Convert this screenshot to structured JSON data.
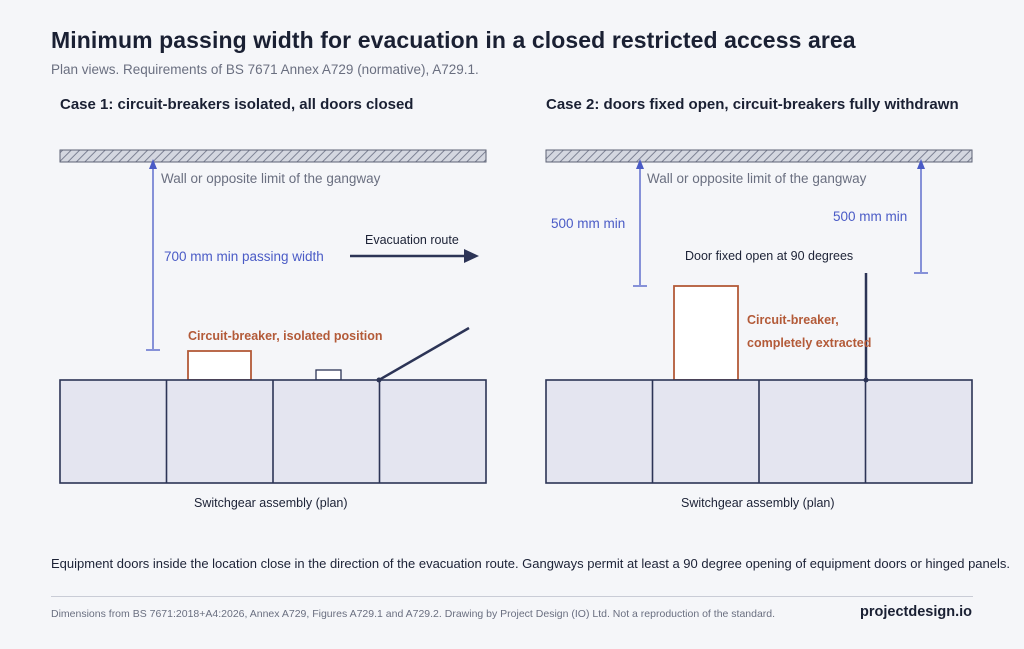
{
  "header": {
    "title": "Minimum passing width for evacuation in a closed restricted access area",
    "subtitle": "Plan views. Requirements of BS 7671 Annex A729 (normative), A729.1."
  },
  "case1": {
    "heading": "Case 1: circuit-breakers isolated, all doors closed",
    "wall_label": "Wall or opposite limit of the gangway",
    "dimension_label": "700 mm min passing width",
    "route_label": "Evacuation route",
    "breaker_label": "Circuit-breaker, isolated position",
    "caption": "Switchgear assembly (plan)"
  },
  "case2": {
    "heading": "Case 2: doors fixed open, circuit-breakers fully withdrawn",
    "wall_label": "Wall or opposite limit of the gangway",
    "dimension_left_label": "500 mm min",
    "dimension_right_label": "500 mm min",
    "door_label": "Door fixed open at 90 degrees",
    "breaker_label_line1": "Circuit-breaker,",
    "breaker_label_line2": "completely extracted",
    "caption": "Switchgear assembly (plan)"
  },
  "note": "Equipment doors inside the location close in the direction of the evacuation route. Gangways permit at least a 90 degree opening of equipment doors or hinged panels.",
  "footer": {
    "source": "Dimensions from BS 7671:2018+A4:2026, Annex A729, Figures A729.1 and A729.2. Drawing by Project Design (IO) Ltd. Not a reproduction of the standard.",
    "brand": "projectdesign.io"
  },
  "colors": {
    "background": "#f5f6f9",
    "panel_fill": "#e4e5f0",
    "panel_stroke": "#2c3456",
    "dimension_blue": "#4a5bc6",
    "breaker_orange": "#b35a38"
  }
}
